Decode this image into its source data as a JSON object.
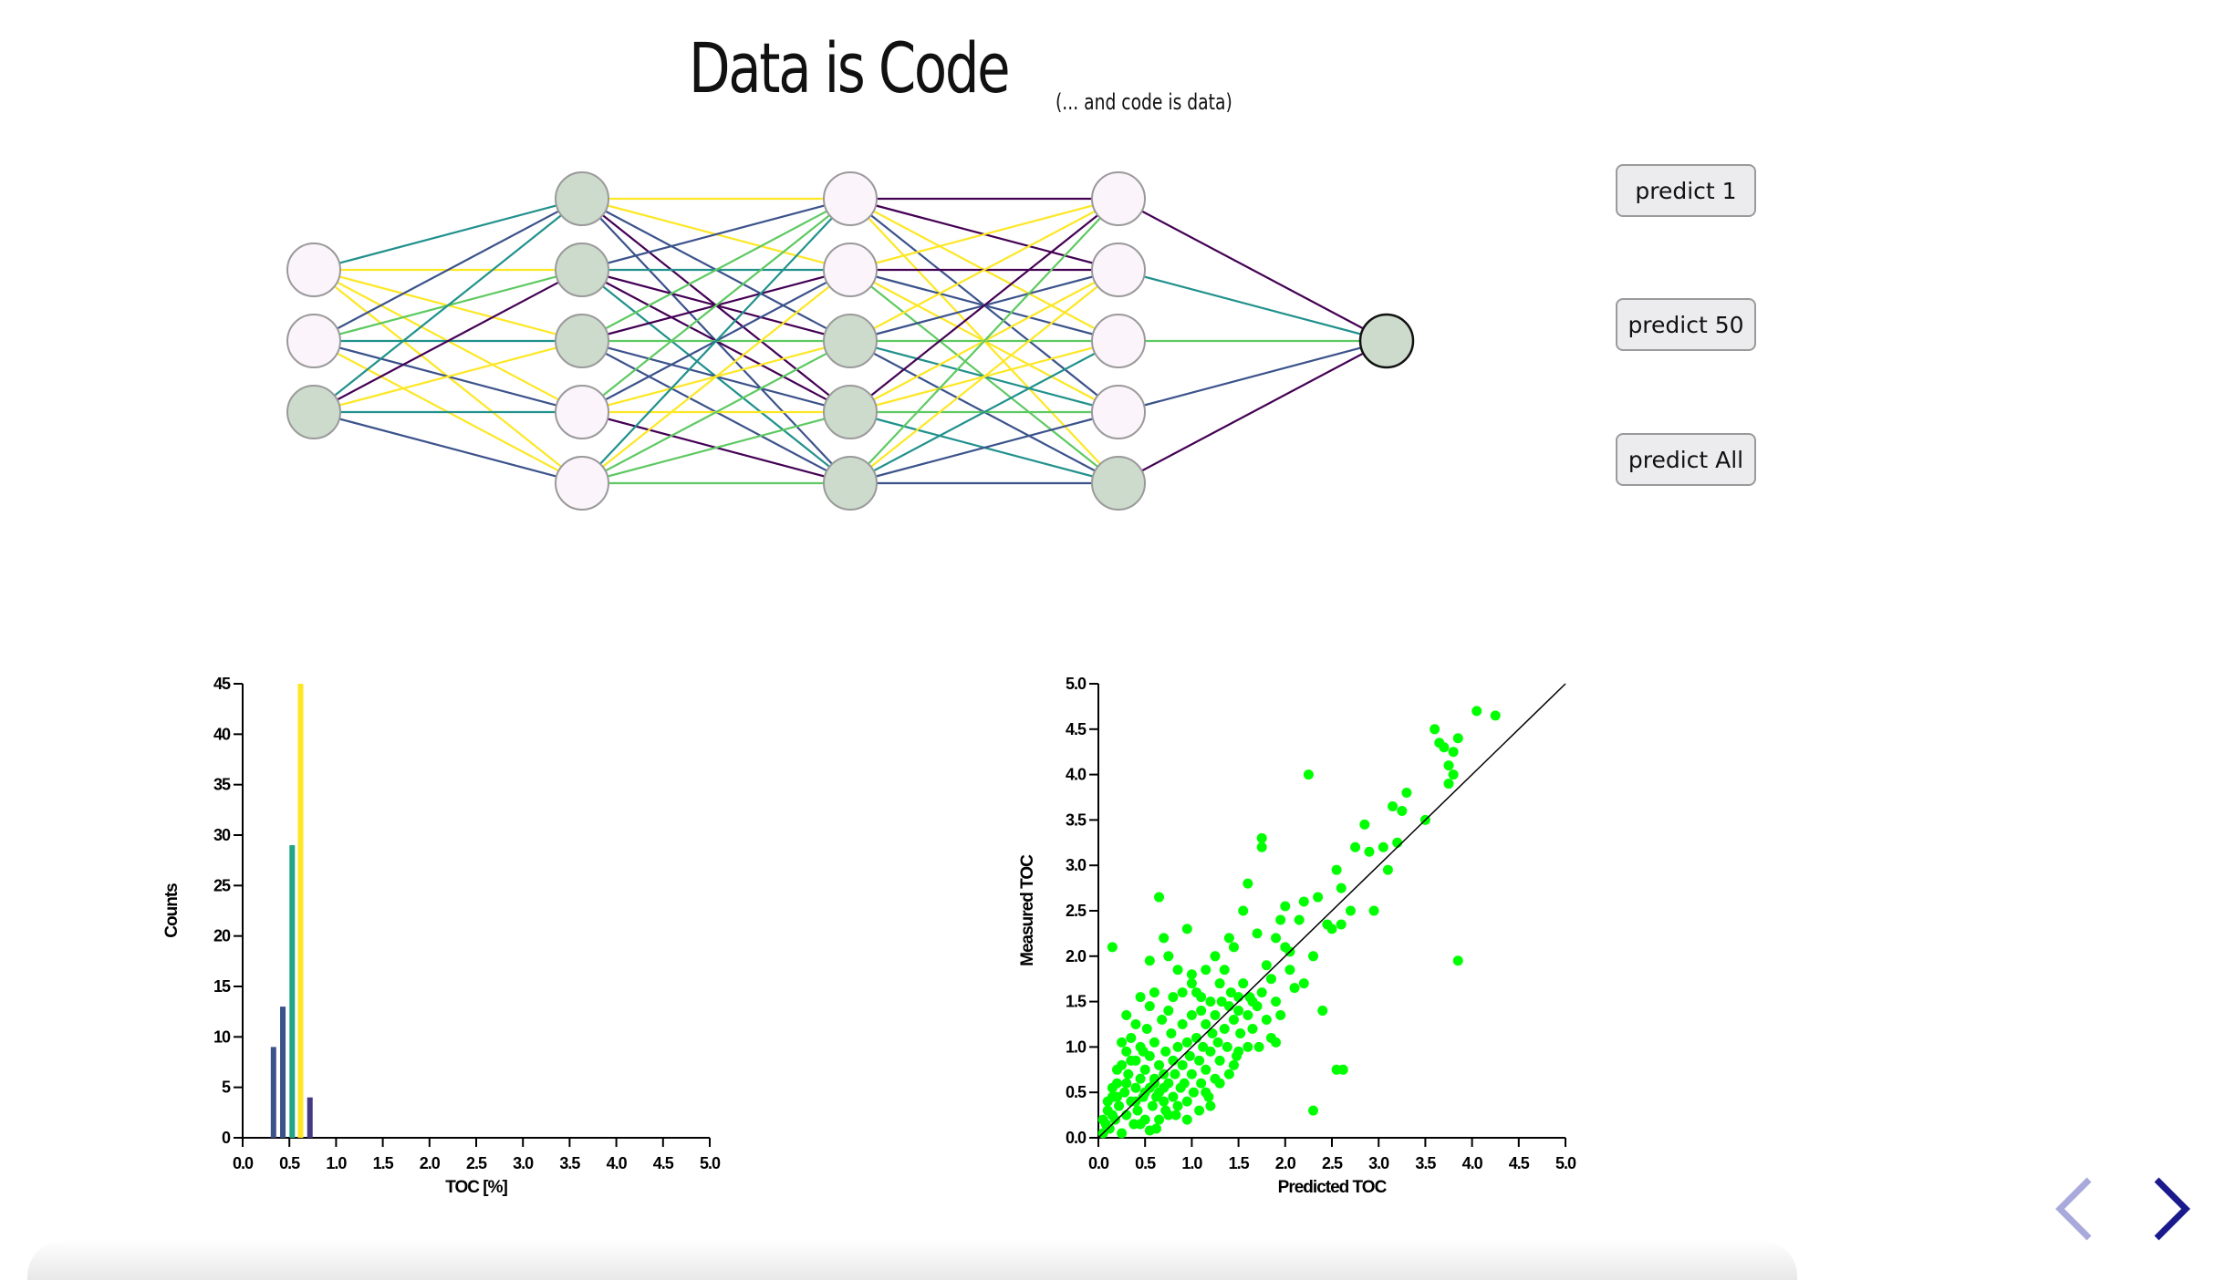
{
  "header": {
    "title": "Data is Code",
    "subtitle": "(... and code is data)"
  },
  "buttons": {
    "predict_1": "predict 1",
    "predict_50": "predict 50",
    "predict_all": "predict All"
  },
  "network": {
    "layers": [
      3,
      5,
      5,
      5,
      1
    ],
    "node_fill_light": "#fbf4fb",
    "node_fill_dark": "#cddbcd",
    "dark_nodes": [
      [
        2
      ],
      [
        0,
        1,
        2
      ],
      [
        2,
        3,
        4
      ],
      [
        4
      ],
      [
        0
      ]
    ],
    "edge_palette": [
      "#440154",
      "#3b528b",
      "#21918c",
      "#5ec962",
      "#fde725"
    ]
  },
  "chart_data": [
    {
      "type": "bar",
      "title": "",
      "xlabel": "TOC [%]",
      "ylabel": "Counts",
      "xlim": [
        0,
        5
      ],
      "ylim": [
        0,
        45
      ],
      "xticks": [
        "0.0",
        "0.5",
        "1.0",
        "1.5",
        "2.0",
        "2.5",
        "3.0",
        "3.5",
        "4.0",
        "4.5",
        "5.0"
      ],
      "yticks": [
        "0",
        "5",
        "10",
        "15",
        "20",
        "25",
        "30",
        "35",
        "40",
        "45"
      ],
      "bars": [
        {
          "x": 0.33,
          "value": 9,
          "color": "#3b528b"
        },
        {
          "x": 0.43,
          "value": 13,
          "color": "#3b528b"
        },
        {
          "x": 0.53,
          "value": 29,
          "color": "#21a685"
        },
        {
          "x": 0.62,
          "value": 45,
          "color": "#fde725"
        },
        {
          "x": 0.72,
          "value": 4,
          "color": "#443a83"
        }
      ]
    },
    {
      "type": "scatter",
      "title": "",
      "xlabel": "Predicted TOC",
      "ylabel": "Measured TOC",
      "xlim": [
        0,
        5
      ],
      "ylim": [
        0,
        5
      ],
      "xticks": [
        "0.0",
        "0.5",
        "1.0",
        "1.5",
        "2.0",
        "2.5",
        "3.0",
        "3.5",
        "4.0",
        "4.5",
        "5.0"
      ],
      "yticks": [
        "0.0",
        "0.5",
        "1.0",
        "1.5",
        "2.0",
        "2.5",
        "3.0",
        "3.5",
        "4.0",
        "4.5",
        "5.0"
      ],
      "point_color": "#00ff00",
      "identity_line": true,
      "points": [
        [
          0.15,
          2.1
        ],
        [
          0.65,
          2.65
        ],
        [
          0.95,
          2.3
        ],
        [
          0.7,
          2.2
        ],
        [
          0.45,
          1.55
        ],
        [
          0.3,
          1.35
        ],
        [
          0.55,
          1.95
        ],
        [
          0.75,
          2.0
        ],
        [
          0.85,
          1.85
        ],
        [
          1.0,
          1.8
        ],
        [
          1.1,
          1.55
        ],
        [
          1.25,
          2.0
        ],
        [
          1.3,
          1.7
        ],
        [
          1.4,
          2.2
        ],
        [
          1.45,
          2.1
        ],
        [
          1.5,
          1.55
        ],
        [
          1.55,
          2.5
        ],
        [
          1.6,
          2.8
        ],
        [
          1.65,
          1.5
        ],
        [
          1.7,
          2.25
        ],
        [
          1.75,
          3.2
        ],
        [
          1.75,
          3.3
        ],
        [
          1.8,
          1.9
        ],
        [
          1.85,
          1.1
        ],
        [
          1.9,
          2.2
        ],
        [
          1.95,
          2.4
        ],
        [
          2.0,
          2.55
        ],
        [
          2.0,
          2.1
        ],
        [
          2.05,
          2.05
        ],
        [
          2.1,
          1.65
        ],
        [
          2.15,
          2.4
        ],
        [
          2.2,
          2.6
        ],
        [
          2.25,
          4.0
        ],
        [
          2.3,
          2.0
        ],
        [
          2.35,
          2.65
        ],
        [
          2.3,
          0.3
        ],
        [
          2.4,
          1.4
        ],
        [
          2.45,
          2.35
        ],
        [
          2.5,
          2.3
        ],
        [
          2.55,
          2.95
        ],
        [
          2.6,
          2.75
        ],
        [
          2.55,
          0.75
        ],
        [
          2.62,
          0.75
        ],
        [
          2.6,
          2.35
        ],
        [
          2.7,
          2.5
        ],
        [
          2.75,
          3.2
        ],
        [
          2.85,
          3.45
        ],
        [
          2.9,
          3.15
        ],
        [
          2.95,
          2.5
        ],
        [
          3.05,
          3.2
        ],
        [
          3.1,
          2.95
        ],
        [
          3.15,
          3.65
        ],
        [
          3.2,
          3.25
        ],
        [
          3.25,
          3.6
        ],
        [
          3.3,
          3.8
        ],
        [
          3.5,
          3.5
        ],
        [
          3.6,
          4.5
        ],
        [
          3.65,
          4.35
        ],
        [
          3.7,
          4.3
        ],
        [
          3.75,
          4.1
        ],
        [
          3.8,
          4.25
        ],
        [
          3.8,
          4.0
        ],
        [
          3.85,
          4.4
        ],
        [
          3.75,
          3.9
        ],
        [
          3.85,
          1.95
        ],
        [
          4.05,
          4.7
        ],
        [
          4.25,
          4.65
        ],
        [
          0.05,
          0.05
        ],
        [
          0.08,
          0.15
        ],
        [
          0.1,
          0.3
        ],
        [
          0.12,
          0.1
        ],
        [
          0.15,
          0.45
        ],
        [
          0.18,
          0.2
        ],
        [
          0.2,
          0.6
        ],
        [
          0.22,
          0.35
        ],
        [
          0.25,
          0.05
        ],
        [
          0.25,
          0.8
        ],
        [
          0.28,
          0.5
        ],
        [
          0.3,
          0.25
        ],
        [
          0.3,
          0.95
        ],
        [
          0.32,
          0.7
        ],
        [
          0.35,
          0.4
        ],
        [
          0.35,
          1.1
        ],
        [
          0.38,
          0.15
        ],
        [
          0.4,
          0.55
        ],
        [
          0.4,
          0.85
        ],
        [
          0.42,
          0.3
        ],
        [
          0.45,
          0.65
        ],
        [
          0.45,
          1.0
        ],
        [
          0.48,
          0.45
        ],
        [
          0.5,
          0.2
        ],
        [
          0.5,
          0.75
        ],
        [
          0.52,
          1.2
        ],
        [
          0.55,
          0.55
        ],
        [
          0.55,
          0.9
        ],
        [
          0.58,
          0.35
        ],
        [
          0.6,
          0.65
        ],
        [
          0.6,
          1.05
        ],
        [
          0.62,
          0.1
        ],
        [
          0.65,
          0.5
        ],
        [
          0.65,
          0.8
        ],
        [
          0.68,
          1.3
        ],
        [
          0.7,
          0.4
        ],
        [
          0.7,
          0.7
        ],
        [
          0.72,
          0.95
        ],
        [
          0.75,
          0.25
        ],
        [
          0.75,
          0.6
        ],
        [
          0.78,
          1.15
        ],
        [
          0.8,
          0.45
        ],
        [
          0.8,
          0.85
        ],
        [
          0.82,
          0.7
        ],
        [
          0.85,
          0.35
        ],
        [
          0.85,
          1.0
        ],
        [
          0.88,
          0.55
        ],
        [
          0.9,
          1.25
        ],
        [
          0.9,
          0.8
        ],
        [
          0.92,
          0.6
        ],
        [
          0.95,
          1.05
        ],
        [
          0.95,
          0.4
        ],
        [
          0.98,
          0.9
        ],
        [
          1.0,
          0.7
        ],
        [
          1.0,
          1.35
        ],
        [
          1.02,
          0.5
        ],
        [
          1.05,
          1.1
        ],
        [
          1.08,
          0.85
        ],
        [
          1.1,
          1.4
        ],
        [
          1.1,
          0.6
        ],
        [
          1.12,
          1.0
        ],
        [
          1.15,
          0.75
        ],
        [
          1.15,
          1.25
        ],
        [
          1.18,
          0.45
        ],
        [
          1.2,
          1.5
        ],
        [
          1.2,
          0.95
        ],
        [
          1.22,
          1.15
        ],
        [
          1.25,
          0.65
        ],
        [
          1.25,
          1.35
        ],
        [
          1.28,
          1.05
        ],
        [
          1.3,
          0.85
        ],
        [
          1.32,
          1.5
        ],
        [
          1.35,
          1.2
        ],
        [
          1.38,
          1.0
        ],
        [
          1.4,
          1.45
        ],
        [
          1.42,
          1.6
        ],
        [
          1.45,
          1.3
        ],
        [
          1.48,
          0.9
        ],
        [
          1.5,
          1.4
        ],
        [
          1.52,
          1.15
        ],
        [
          1.55,
          1.7
        ],
        [
          1.6,
          1.35
        ],
        [
          1.62,
          1.55
        ],
        [
          1.65,
          1.2
        ],
        [
          1.7,
          1.45
        ],
        [
          1.72,
          1.0
        ],
        [
          1.75,
          1.6
        ],
        [
          1.8,
          1.3
        ],
        [
          1.85,
          1.75
        ],
        [
          1.9,
          1.5
        ],
        [
          1.95,
          1.35
        ],
        [
          1.2,
          0.35
        ],
        [
          1.15,
          0.5
        ],
        [
          1.3,
          0.6
        ],
        [
          0.55,
          1.45
        ],
        [
          0.4,
          1.25
        ],
        [
          0.25,
          1.05
        ],
        [
          0.6,
          1.6
        ],
        [
          0.8,
          1.55
        ],
        [
          0.75,
          1.4
        ],
        [
          0.9,
          1.6
        ],
        [
          1.05,
          1.6
        ],
        [
          1.15,
          1.85
        ],
        [
          1.0,
          1.7
        ],
        [
          1.35,
          1.85
        ],
        [
          0.15,
          0.55
        ],
        [
          0.2,
          0.75
        ],
        [
          0.1,
          0.4
        ],
        [
          0.45,
          0.15
        ],
        [
          0.55,
          0.08
        ],
        [
          0.65,
          0.2
        ],
        [
          0.35,
          0.85
        ],
        [
          0.48,
          0.95
        ],
        [
          0.62,
          0.45
        ],
        [
          0.72,
          0.3
        ],
        [
          0.83,
          0.25
        ],
        [
          0.95,
          0.2
        ],
        [
          1.08,
          0.3
        ],
        [
          0.5,
          0.5
        ],
        [
          0.4,
          0.4
        ],
        [
          0.6,
          0.6
        ],
        [
          0.7,
          0.55
        ],
        [
          0.3,
          0.6
        ],
        [
          0.2,
          0.45
        ],
        [
          0.15,
          0.25
        ],
        [
          0.05,
          0.2
        ],
        [
          1.45,
          0.8
        ],
        [
          1.6,
          1.0
        ],
        [
          1.9,
          1.05
        ],
        [
          2.05,
          1.85
        ],
        [
          2.2,
          1.7
        ],
        [
          1.4,
          0.7
        ],
        [
          1.5,
          0.95
        ]
      ]
    }
  ],
  "nav": {
    "prev": "previous-slide",
    "next": "next-slide"
  }
}
